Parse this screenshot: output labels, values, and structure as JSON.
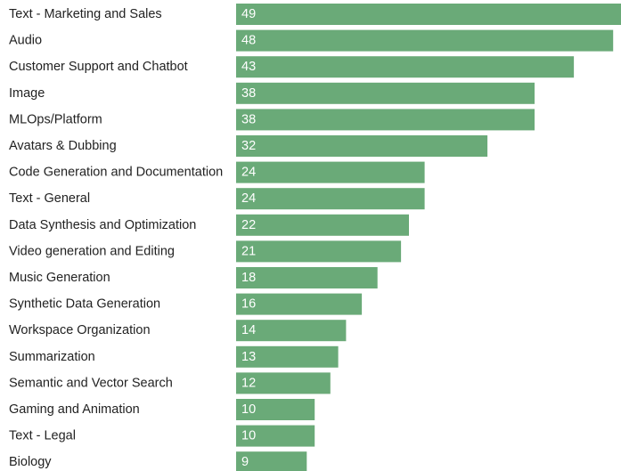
{
  "chart_data": {
    "type": "bar",
    "orientation": "horizontal",
    "categories": [
      "Text - Marketing and Sales",
      "Audio",
      "Customer Support and Chatbot",
      "Image",
      "MLOps/Platform",
      "Avatars & Dubbing",
      "Code Generation and Documentation",
      "Text - General",
      "Data Synthesis and Optimization",
      "Video generation and Editing",
      "Music Generation",
      "Synthetic Data Generation",
      "Workspace Organization",
      "Summarization",
      "Semantic and Vector Search",
      "Gaming and Animation",
      "Text - Legal",
      "Biology"
    ],
    "values": [
      49,
      48,
      43,
      38,
      38,
      32,
      24,
      24,
      22,
      21,
      18,
      16,
      14,
      13,
      12,
      10,
      10,
      9
    ],
    "value_labels": [
      "49",
      "48",
      "43",
      "38",
      "38",
      "32",
      "24",
      "24",
      "22",
      "21",
      "18",
      "16",
      "14",
      "13",
      "12",
      "10",
      "10",
      "9"
    ],
    "xlim": [
      0,
      49
    ],
    "grid": false,
    "legend": false,
    "colors": {
      "bar": "#6aaa78",
      "label": "#222222",
      "value_label": "#ffffff"
    }
  }
}
